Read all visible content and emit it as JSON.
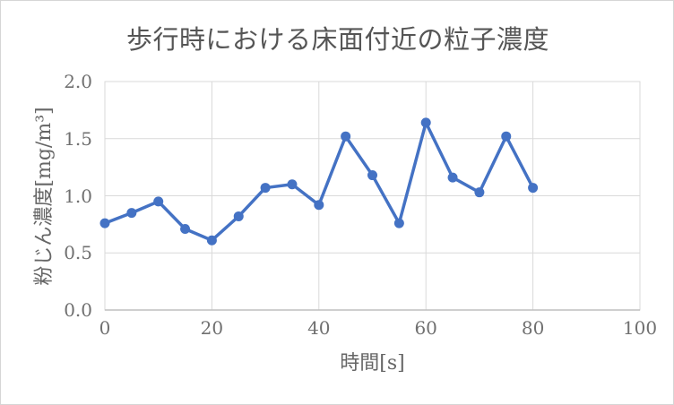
{
  "chart_data": {
    "type": "line",
    "title": "歩行時における床面付近の粒子濃度",
    "xlabel": "時間[s]",
    "ylabel": "粉じん濃度[mg/m³]",
    "x": [
      0,
      5,
      10,
      15,
      20,
      25,
      30,
      35,
      40,
      45,
      50,
      55,
      60,
      65,
      70,
      75,
      80
    ],
    "series": [
      {
        "name": "粉じん濃度",
        "values": [
          0.76,
          0.85,
          0.95,
          0.71,
          0.61,
          0.82,
          1.07,
          1.1,
          0.92,
          1.52,
          1.18,
          0.76,
          1.64,
          1.16,
          1.03,
          1.52,
          1.07
        ]
      }
    ],
    "xlim": [
      0,
      100
    ],
    "ylim": [
      0.0,
      2.0
    ],
    "x_tick_labels": [
      "0",
      "20",
      "40",
      "60",
      "80",
      "100"
    ],
    "x_tick_values": [
      0,
      20,
      40,
      60,
      80,
      100
    ],
    "y_tick_labels": [
      "0.0",
      "0.5",
      "1.0",
      "1.5",
      "2.0"
    ],
    "y_tick_values": [
      0.0,
      0.5,
      1.0,
      1.5,
      2.0
    ],
    "grid": true,
    "legend": false,
    "marker": "circle"
  },
  "colors": {
    "series_line": "#4472C4",
    "marker_fill": "#4472C4",
    "gridline": "#d9d9d9",
    "plot_border": "#d9d9d9",
    "axis_line": "#bfbfbf",
    "tick_text": "#707070",
    "title_text": "#555555"
  }
}
